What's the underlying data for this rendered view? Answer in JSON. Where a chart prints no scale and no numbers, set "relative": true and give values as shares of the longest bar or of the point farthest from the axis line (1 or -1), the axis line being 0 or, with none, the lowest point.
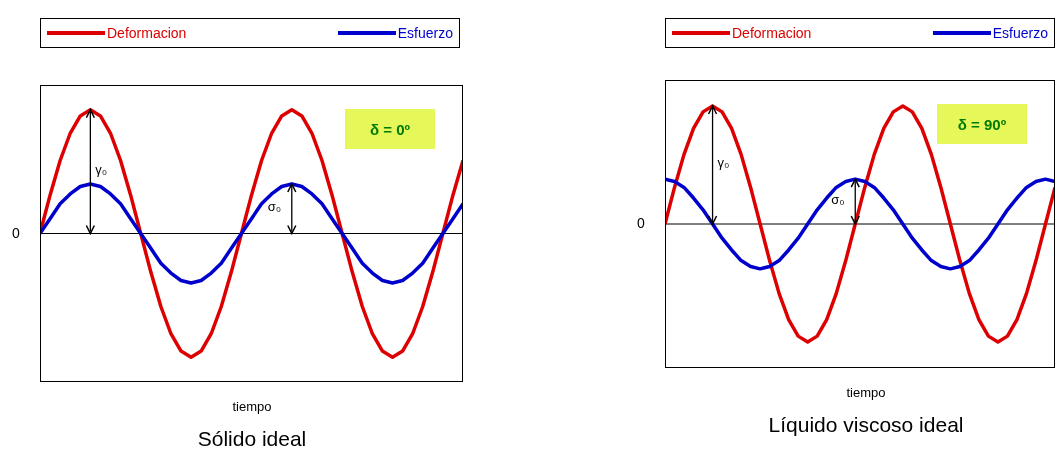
{
  "chart_data": [
    {
      "type": "line",
      "title": "Sólido ideal",
      "xlabel": "tiempo",
      "relative": true,
      "legend": "top",
      "marker": "none",
      "line_style": "solid",
      "grid": false,
      "categories": [
        null,
        null,
        null,
        null,
        null,
        null,
        null,
        null,
        null,
        null,
        null,
        null,
        null,
        null,
        null,
        null,
        null,
        null,
        null,
        null,
        null,
        null,
        null,
        null,
        null,
        null,
        null,
        null,
        null,
        null,
        null,
        null,
        null,
        null,
        null,
        null,
        null,
        null,
        null,
        null,
        null,
        null,
        null
      ],
      "series": [
        {
          "name": "Deformacion",
          "color": "#dd0000",
          "values": [
            0,
            0.31,
            0.59,
            0.81,
            0.95,
            1,
            0.95,
            0.81,
            0.59,
            0.31,
            0,
            -0.31,
            -0.59,
            -0.81,
            -0.95,
            -1,
            -0.95,
            -0.81,
            -0.59,
            -0.31,
            0,
            0.31,
            0.59,
            0.81,
            0.95,
            1,
            0.95,
            0.81,
            0.59,
            0.31,
            0,
            -0.31,
            -0.59,
            -0.81,
            -0.95,
            -1,
            -0.95,
            -0.81,
            -0.59,
            -0.31,
            0,
            0.31,
            0.59
          ]
        },
        {
          "name": "Esfuerzo",
          "color": "#0000cc",
          "values": [
            0,
            0.12,
            0.24,
            0.32,
            0.38,
            0.4,
            0.38,
            0.32,
            0.24,
            0.12,
            0,
            -0.12,
            -0.24,
            -0.32,
            -0.38,
            -0.4,
            -0.38,
            -0.32,
            -0.24,
            -0.12,
            0,
            0.12,
            0.24,
            0.32,
            0.38,
            0.4,
            0.38,
            0.32,
            0.24,
            0.12,
            0,
            -0.12,
            -0.24,
            -0.32,
            -0.38,
            -0.4,
            -0.38,
            -0.32,
            -0.24,
            -0.12,
            0,
            0.12,
            0.24
          ]
        }
      ],
      "annotations": [
        "0",
        "γ₀",
        "σ₀",
        "δ = 0º"
      ]
    },
    {
      "type": "line",
      "title": "Líquido viscoso ideal",
      "xlabel": "tiempo",
      "relative": true,
      "legend": "top",
      "marker": "none",
      "line_style": "solid",
      "grid": false,
      "categories": [
        null,
        null,
        null,
        null,
        null,
        null,
        null,
        null,
        null,
        null,
        null,
        null,
        null,
        null,
        null,
        null,
        null,
        null,
        null,
        null,
        null,
        null,
        null,
        null,
        null,
        null,
        null,
        null,
        null,
        null,
        null,
        null,
        null,
        null,
        null,
        null,
        null,
        null,
        null,
        null,
        null,
        null
      ],
      "series": [
        {
          "name": "Deformacion",
          "color": "#dd0000",
          "values": [
            0,
            0.31,
            0.59,
            0.81,
            0.95,
            1,
            0.95,
            0.81,
            0.59,
            0.31,
            0,
            -0.31,
            -0.59,
            -0.81,
            -0.95,
            -1,
            -0.95,
            -0.81,
            -0.59,
            -0.31,
            0,
            0.31,
            0.59,
            0.81,
            0.95,
            1,
            0.95,
            0.81,
            0.59,
            0.31,
            0,
            -0.31,
            -0.59,
            -0.81,
            -0.95,
            -1,
            -0.95,
            -0.81,
            -0.59,
            -0.31,
            0,
            0.31
          ]
        },
        {
          "name": "Esfuerzo",
          "color": "#0000cc",
          "values": [
            0.38,
            0.36,
            0.31,
            0.22,
            0.12,
            0,
            -0.12,
            -0.22,
            -0.31,
            -0.36,
            -0.38,
            -0.36,
            -0.31,
            -0.22,
            -0.12,
            0,
            0.12,
            0.22,
            0.31,
            0.36,
            0.38,
            0.36,
            0.31,
            0.22,
            0.12,
            0,
            -0.12,
            -0.22,
            -0.31,
            -0.36,
            -0.38,
            -0.36,
            -0.31,
            -0.22,
            -0.12,
            0,
            0.12,
            0.22,
            0.31,
            0.36,
            0.38,
            0.36
          ]
        }
      ],
      "annotations": [
        "0",
        "γ₀",
        "σ₀",
        "δ = 90º"
      ]
    }
  ]
}
